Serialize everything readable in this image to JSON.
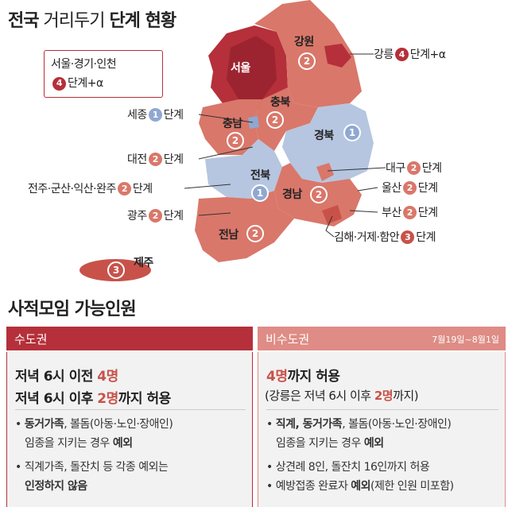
{
  "title_a": "전국",
  "title_b": " 거리두기 ",
  "title_c": "단계 현황",
  "colors": {
    "level1": "#8fa8d1",
    "level2": "#d9776a",
    "level3": "#c8524a",
    "level4": "#b5303a"
  },
  "regions": [
    {
      "name": "서울",
      "level": "4"
    },
    {
      "name": "강원",
      "level": "2"
    },
    {
      "name": "충북",
      "level": "2"
    },
    {
      "name": "충남",
      "level": "2"
    },
    {
      "name": "경북",
      "level": "1"
    },
    {
      "name": "전북",
      "level": "1"
    },
    {
      "name": "경남",
      "level": "2"
    },
    {
      "name": "전남",
      "level": "2"
    },
    {
      "name": "제주",
      "level": "3"
    }
  ],
  "callout": {
    "line1": "서울·경기·인천",
    "level": "4",
    "line2": "단계+α"
  },
  "labels": {
    "gangneung": {
      "name": "강릉",
      "level": "4",
      "text": "단계+α"
    },
    "sejong": {
      "name": "세종",
      "level": "1",
      "text": "단계"
    },
    "daejeon": {
      "name": "대전",
      "level": "2",
      "text": "단계"
    },
    "jeonju": {
      "name": "전주·군산·익산·완주",
      "level": "2",
      "text": "단계"
    },
    "gwangju": {
      "name": "광주",
      "level": "2",
      "text": "단계"
    },
    "daegu": {
      "name": "대구",
      "level": "2",
      "text": "단계"
    },
    "ulsan": {
      "name": "울산",
      "level": "2",
      "text": "단계"
    },
    "busan": {
      "name": "부산",
      "level": "2",
      "text": "단계"
    },
    "gimhae": {
      "name": "김해·거제·함안",
      "level": "3",
      "text": "단계"
    }
  },
  "section_title": "사적모임 가능인원",
  "capital": {
    "header": "수도권",
    "line1_a": "저녁 6시 이전 ",
    "line1_b": "4명",
    "line2_a": "저녁 6시 이후 ",
    "line2_b": "2명",
    "line2_c": "까지 허용",
    "note1_a": "• ",
    "note1_b": "동거가족",
    "note1_c": ", 볼돔(아동·노인·장애인)",
    "note2_a": "임종을 지키는 경우 ",
    "note2_b": "예외",
    "note3": "• 직계가족, 돌잔치 등 각종 예외는",
    "note4": "인정하지 않음"
  },
  "noncapital": {
    "header": "비수도권",
    "date": "7월19일~8월1일",
    "line1_a": "4명",
    "line1_b": "까지 허용",
    "line2_a": "(강릉은 저녁 6시 이후 ",
    "line2_b": "2명",
    "line2_c": "까지)",
    "note1_a": "• ",
    "note1_b": "직계, 동거가족",
    "note1_c": ", 볼돔(아동·노인·장애인)",
    "note2_a": "임종을 지키는 경우 ",
    "note2_b": "예외",
    "note3": "• 상견례 8인, 돌잔치 16인까지 허용",
    "note4_a": "• 예방접종 완료자 ",
    "note4_b": "예외",
    "note4_c": "(제한 인원 미포함)"
  }
}
